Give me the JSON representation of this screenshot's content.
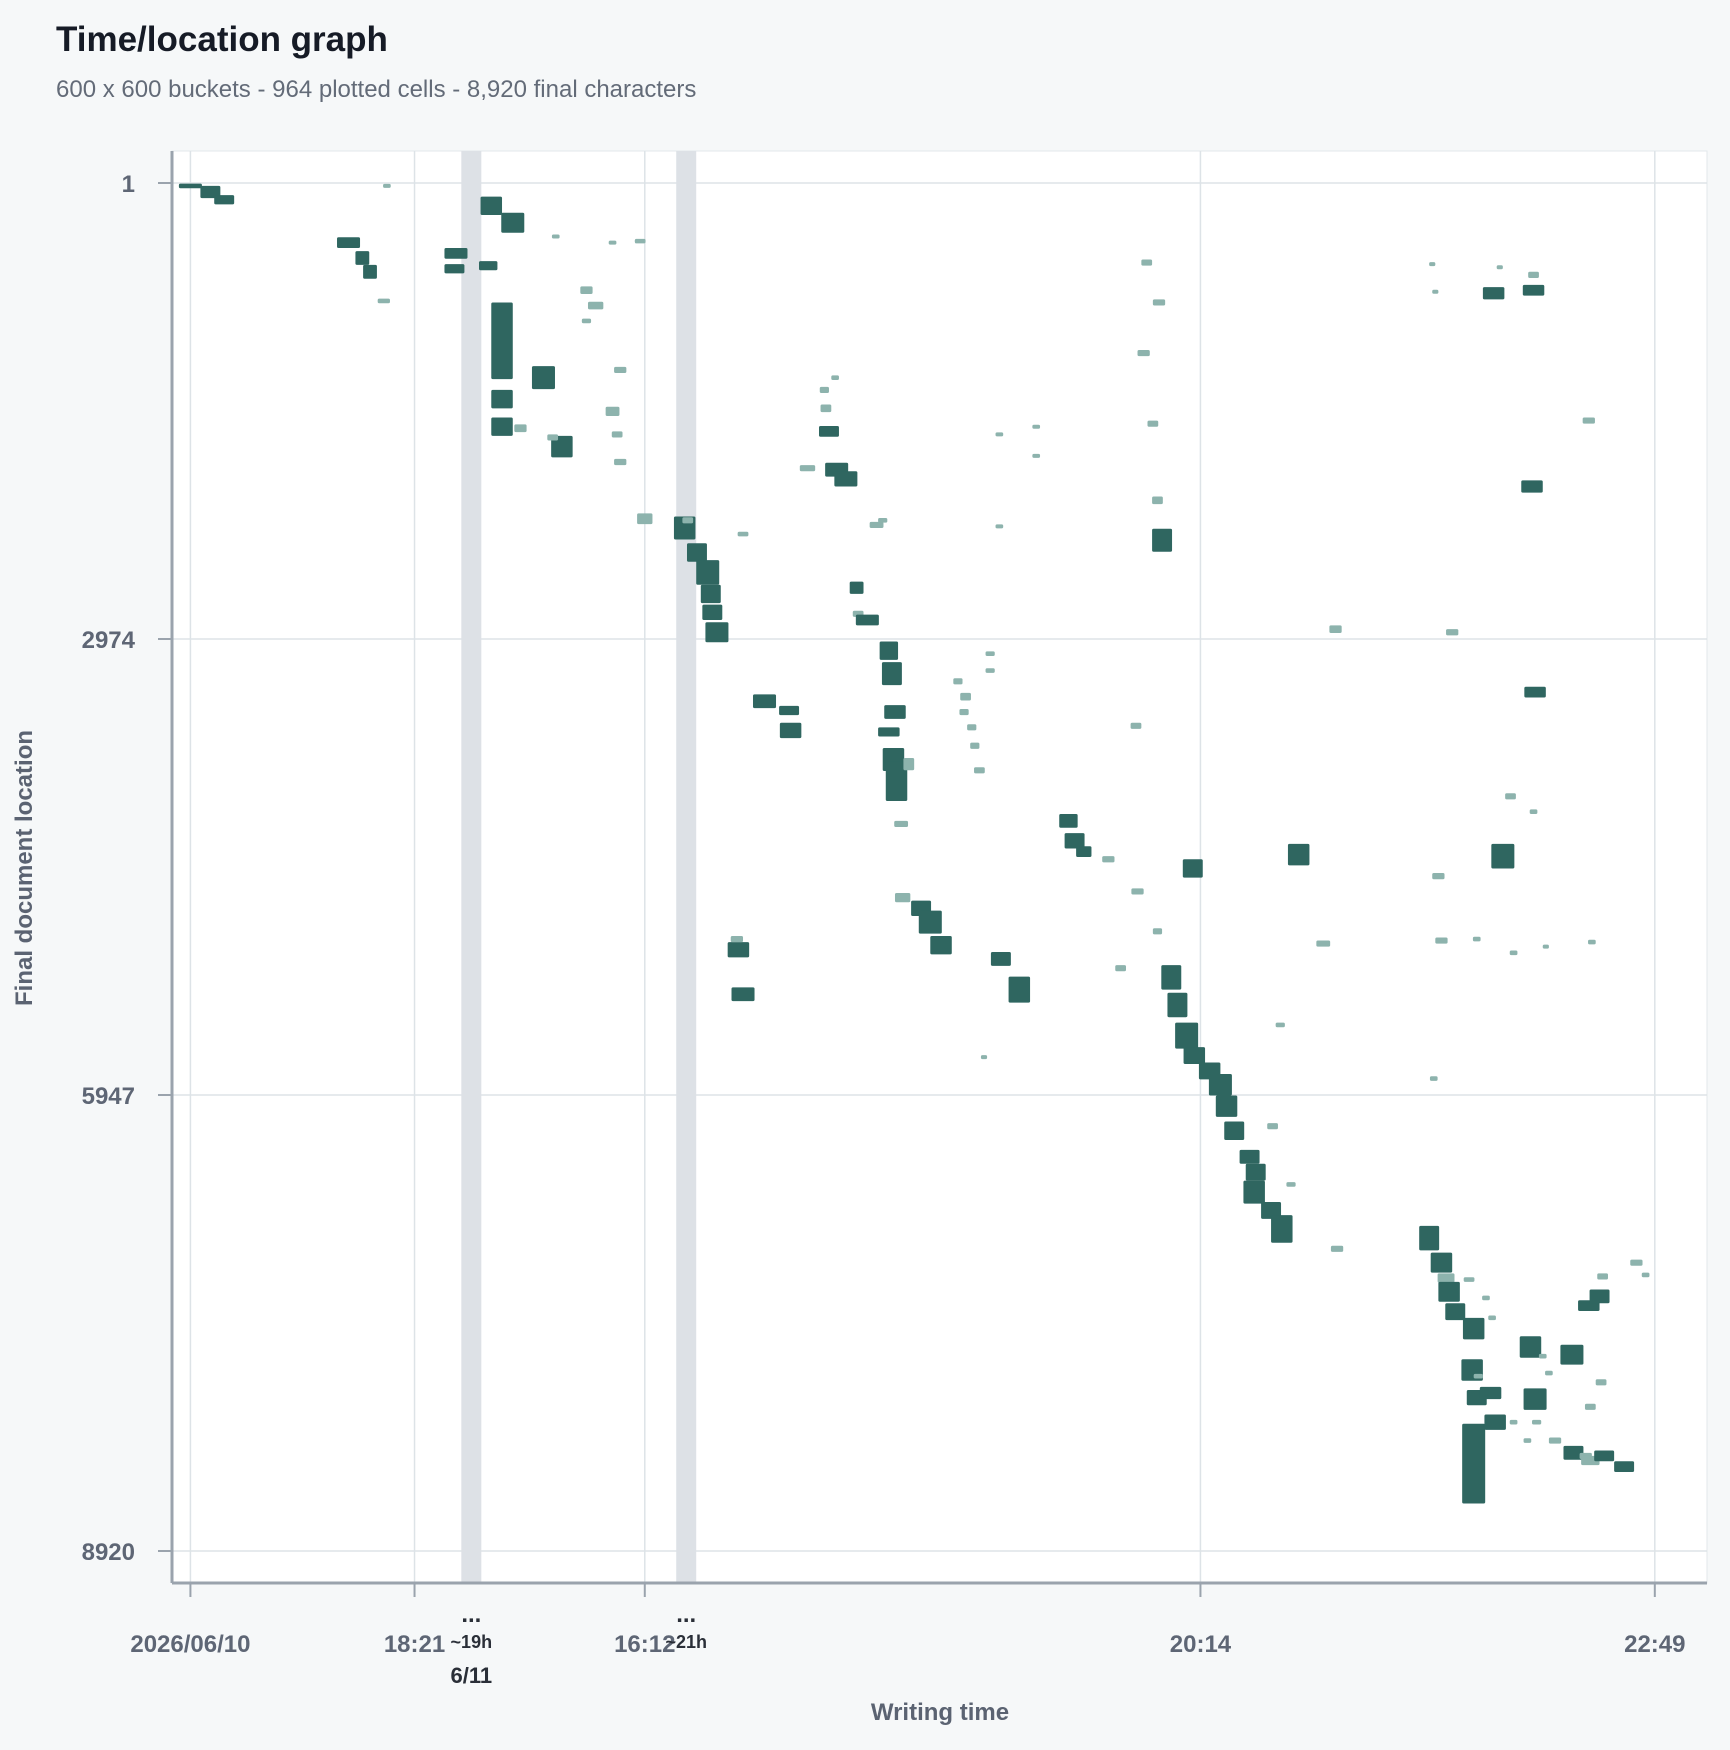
{
  "header": {
    "title": "Time/location graph",
    "subtitle": "600 x 600 buckets - 964 plotted cells - 8,920 final characters"
  },
  "colors": {
    "cell": "#2f6660",
    "cell_light": "#8db3ad",
    "grid": "#dde3e7",
    "gap_band": "#dde1e6",
    "axis": "#9aa3ad",
    "plot_bg": "#ffffff"
  },
  "chart_data": {
    "type": "heatmap",
    "xlabel": "Writing time",
    "ylabel": "Final document location",
    "ylim": [
      1,
      8920
    ],
    "y_ticks": [
      1,
      2974,
      5947,
      8920
    ],
    "x_segments": [
      {
        "start": 0,
        "end": 19
      },
      {
        "start": 20,
        "end": 33
      },
      {
        "start": 34,
        "end": 100
      }
    ],
    "x_ticks": [
      {
        "label": "2026/06/10",
        "pos": 1.2
      },
      {
        "label": "18:21",
        "pos": 15.8
      },
      {
        "label": "16:12",
        "pos": 30.8
      },
      {
        "label": "20:14",
        "pos": 67.0
      },
      {
        "label": "22:49",
        "pos": 96.6
      }
    ],
    "gaps": [
      {
        "label": "~19h",
        "pos": 19.5,
        "marker": "...",
        "date": "6/11"
      },
      {
        "label": "~21h",
        "pos": 33.5,
        "marker": "..."
      }
    ],
    "cells": [
      [
        1.2,
        20,
        1.5,
        30,
        0
      ],
      [
        2.5,
        60,
        1.3,
        80,
        0
      ],
      [
        3.4,
        110,
        1.3,
        60,
        0
      ],
      [
        11.5,
        390,
        1.5,
        70,
        0
      ],
      [
        12.4,
        490,
        0.9,
        90,
        0
      ],
      [
        12.9,
        580,
        0.9,
        90,
        0
      ],
      [
        13.8,
        770,
        0.8,
        30,
        1
      ],
      [
        18.5,
        460,
        1.5,
        70,
        0
      ],
      [
        18.4,
        560,
        1.3,
        60,
        0
      ],
      [
        20.8,
        150,
        1.4,
        120,
        0
      ],
      [
        22.2,
        260,
        1.5,
        130,
        0
      ],
      [
        20.6,
        540,
        1.2,
        60,
        0
      ],
      [
        21.5,
        1030,
        1.4,
        500,
        0
      ],
      [
        21.5,
        1410,
        1.4,
        120,
        0
      ],
      [
        21.5,
        1590,
        1.4,
        120,
        0
      ],
      [
        22.7,
        1600,
        0.8,
        50,
        1
      ],
      [
        24.2,
        1270,
        1.5,
        150,
        0
      ],
      [
        25.4,
        1720,
        1.4,
        140,
        0
      ],
      [
        24.8,
        1660,
        0.7,
        40,
        1
      ],
      [
        27.0,
        700,
        0.8,
        50,
        1
      ],
      [
        27.6,
        800,
        1.0,
        50,
        1
      ],
      [
        27.0,
        900,
        0.6,
        30,
        1
      ],
      [
        29.2,
        1220,
        0.8,
        40,
        1
      ],
      [
        28.7,
        1490,
        0.9,
        60,
        1
      ],
      [
        29.0,
        1640,
        0.7,
        40,
        1
      ],
      [
        29.2,
        1820,
        0.8,
        40,
        1
      ],
      [
        30.8,
        2190,
        1.0,
        70,
        1
      ],
      [
        30.5,
        380,
        0.7,
        30,
        1
      ],
      [
        28.7,
        390,
        0.5,
        20,
        1
      ],
      [
        25.0,
        350,
        0.5,
        20,
        1
      ],
      [
        14.0,
        20,
        0.5,
        20,
        1
      ],
      [
        33.4,
        2250,
        1.4,
        150,
        0
      ],
      [
        34.2,
        2410,
        1.3,
        120,
        0
      ],
      [
        34.9,
        2540,
        1.5,
        160,
        0
      ],
      [
        35.1,
        2680,
        1.3,
        120,
        0
      ],
      [
        35.2,
        2800,
        1.3,
        100,
        0
      ],
      [
        35.5,
        2930,
        1.5,
        130,
        0
      ],
      [
        33.6,
        2200,
        0.7,
        40,
        1
      ],
      [
        37.2,
        2290,
        0.7,
        30,
        1
      ],
      [
        38.6,
        3380,
        1.5,
        90,
        0
      ],
      [
        40.2,
        3440,
        1.3,
        60,
        0
      ],
      [
        40.3,
        3570,
        1.4,
        100,
        0
      ],
      [
        36.9,
        5000,
        1.4,
        100,
        0
      ],
      [
        37.2,
        5290,
        1.5,
        90,
        0
      ],
      [
        36.8,
        4930,
        0.8,
        40,
        1
      ],
      [
        41.4,
        1860,
        1.0,
        40,
        1
      ],
      [
        42.5,
        1350,
        0.6,
        40,
        1
      ],
      [
        42.6,
        1470,
        0.7,
        50,
        1
      ],
      [
        42.8,
        1620,
        1.3,
        70,
        0
      ],
      [
        43.3,
        1870,
        1.5,
        90,
        0
      ],
      [
        43.9,
        1930,
        1.5,
        100,
        0
      ],
      [
        43.2,
        1270,
        0.5,
        30,
        1
      ],
      [
        44.6,
        2640,
        0.9,
        80,
        0
      ],
      [
        44.7,
        2810,
        0.7,
        40,
        1
      ],
      [
        45.3,
        2850,
        1.5,
        70,
        0
      ],
      [
        45.9,
        2230,
        0.9,
        40,
        1
      ],
      [
        46.3,
        2200,
        0.6,
        30,
        1
      ],
      [
        46.7,
        3050,
        1.2,
        120,
        0
      ],
      [
        46.9,
        3200,
        1.3,
        150,
        0
      ],
      [
        47.1,
        3450,
        1.4,
        90,
        0
      ],
      [
        46.7,
        3580,
        1.4,
        60,
        0
      ],
      [
        47.0,
        3760,
        1.4,
        150,
        0
      ],
      [
        47.2,
        3900,
        1.4,
        260,
        0
      ],
      [
        48.0,
        3790,
        0.7,
        80,
        1
      ],
      [
        47.5,
        4180,
        0.9,
        40,
        1
      ],
      [
        47.6,
        4660,
        1.0,
        60,
        1
      ],
      [
        48.8,
        4730,
        1.3,
        100,
        0
      ],
      [
        49.4,
        4820,
        1.5,
        150,
        0
      ],
      [
        50.1,
        4970,
        1.4,
        120,
        0
      ],
      [
        51.2,
        3250,
        0.6,
        40,
        1
      ],
      [
        51.7,
        3350,
        0.7,
        50,
        1
      ],
      [
        51.6,
        3450,
        0.6,
        40,
        1
      ],
      [
        52.1,
        3550,
        0.6,
        40,
        1
      ],
      [
        52.3,
        3670,
        0.6,
        40,
        1
      ],
      [
        52.6,
        3830,
        0.7,
        40,
        1
      ],
      [
        53.3,
        3070,
        0.6,
        30,
        1
      ],
      [
        53.3,
        3180,
        0.6,
        30,
        1
      ],
      [
        54.0,
        5060,
        1.3,
        90,
        0
      ],
      [
        55.2,
        5260,
        1.4,
        170,
        0
      ],
      [
        52.9,
        5700,
        0.4,
        20,
        1
      ],
      [
        56.3,
        1590,
        0.5,
        20,
        1
      ],
      [
        56.3,
        1780,
        0.5,
        20,
        1
      ],
      [
        53.9,
        1640,
        0.5,
        20,
        1
      ],
      [
        53.9,
        2240,
        0.5,
        20,
        1
      ],
      [
        58.4,
        4160,
        1.2,
        90,
        0
      ],
      [
        58.8,
        4290,
        1.3,
        100,
        0
      ],
      [
        59.4,
        4360,
        1.0,
        70,
        0
      ],
      [
        61.0,
        4410,
        0.8,
        40,
        1
      ],
      [
        62.9,
        4620,
        0.8,
        40,
        1
      ],
      [
        66.5,
        4470,
        1.3,
        120,
        0
      ],
      [
        64.2,
        4880,
        0.6,
        40,
        1
      ],
      [
        61.8,
        5120,
        0.7,
        40,
        1
      ],
      [
        62.8,
        3540,
        0.7,
        40,
        1
      ],
      [
        63.3,
        1110,
        0.8,
        40,
        1
      ],
      [
        63.9,
        1570,
        0.7,
        40,
        1
      ],
      [
        64.2,
        2070,
        0.7,
        50,
        1
      ],
      [
        63.5,
        520,
        0.7,
        40,
        1
      ],
      [
        64.3,
        780,
        0.8,
        40,
        1
      ],
      [
        64.5,
        2330,
        1.3,
        150,
        0
      ],
      [
        65.1,
        5180,
        1.3,
        160,
        0
      ],
      [
        65.5,
        5360,
        1.3,
        160,
        0
      ],
      [
        66.1,
        5560,
        1.5,
        170,
        0
      ],
      [
        66.6,
        5690,
        1.4,
        110,
        0
      ],
      [
        67.6,
        5790,
        1.4,
        110,
        0
      ],
      [
        68.3,
        5880,
        1.5,
        140,
        0
      ],
      [
        68.7,
        6020,
        1.4,
        140,
        0
      ],
      [
        69.2,
        6180,
        1.3,
        120,
        0
      ],
      [
        70.2,
        6350,
        1.3,
        90,
        0
      ],
      [
        70.6,
        6450,
        1.3,
        110,
        0
      ],
      [
        70.5,
        6580,
        1.4,
        150,
        0
      ],
      [
        71.6,
        6700,
        1.3,
        110,
        0
      ],
      [
        72.3,
        6820,
        1.4,
        180,
        0
      ],
      [
        71.7,
        6150,
        0.7,
        40,
        1
      ],
      [
        72.9,
        6530,
        0.6,
        30,
        1
      ],
      [
        72.2,
        5490,
        0.6,
        30,
        1
      ],
      [
        73.4,
        4380,
        1.4,
        140,
        0
      ],
      [
        75.0,
        4960,
        0.9,
        40,
        1
      ],
      [
        75.8,
        2910,
        0.8,
        50,
        1
      ],
      [
        75.9,
        6950,
        0.8,
        40,
        1
      ],
      [
        83.4,
        2930,
        0.8,
        40,
        1
      ],
      [
        82.5,
        4520,
        0.8,
        40,
        1
      ],
      [
        82.7,
        4940,
        0.8,
        40,
        1
      ],
      [
        82.2,
        5840,
        0.5,
        30,
        1
      ],
      [
        82.3,
        710,
        0.4,
        20,
        1
      ],
      [
        82.1,
        530,
        0.4,
        20,
        1
      ],
      [
        86.1,
        720,
        1.4,
        80,
        0
      ],
      [
        88.7,
        700,
        1.4,
        70,
        0
      ],
      [
        88.7,
        600,
        0.7,
        40,
        1
      ],
      [
        86.5,
        550,
        0.4,
        20,
        1
      ],
      [
        92.3,
        1550,
        0.8,
        40,
        1
      ],
      [
        88.6,
        1980,
        1.4,
        80,
        0
      ],
      [
        88.8,
        3320,
        1.4,
        70,
        0
      ],
      [
        87.2,
        4000,
        0.7,
        40,
        1
      ],
      [
        88.7,
        4100,
        0.5,
        30,
        1
      ],
      [
        86.7,
        4390,
        1.5,
        160,
        0
      ],
      [
        85.0,
        4930,
        0.5,
        30,
        1
      ],
      [
        87.4,
        5020,
        0.5,
        30,
        1
      ],
      [
        89.5,
        4980,
        0.4,
        20,
        1
      ],
      [
        92.5,
        4950,
        0.5,
        30,
        1
      ],
      [
        81.9,
        6880,
        1.3,
        160,
        0
      ],
      [
        82.7,
        7040,
        1.4,
        130,
        0
      ],
      [
        83.0,
        7140,
        1.1,
        60,
        1
      ],
      [
        83.2,
        7230,
        1.4,
        130,
        0
      ],
      [
        83.6,
        7360,
        1.3,
        110,
        0
      ],
      [
        84.8,
        7470,
        1.4,
        140,
        0
      ],
      [
        84.5,
        7150,
        0.7,
        30,
        1
      ],
      [
        85.6,
        7270,
        0.5,
        30,
        1
      ],
      [
        86.0,
        7400,
        0.5,
        30,
        1
      ],
      [
        84.7,
        7740,
        1.4,
        140,
        0
      ],
      [
        85.1,
        7780,
        0.6,
        30,
        1
      ],
      [
        85.0,
        7920,
        1.3,
        100,
        0
      ],
      [
        85.9,
        7890,
        1.4,
        80,
        0
      ],
      [
        86.2,
        8080,
        1.4,
        100,
        0
      ],
      [
        84.6,
        8110,
        0.4,
        20,
        1
      ],
      [
        87.4,
        8080,
        0.5,
        30,
        1
      ],
      [
        88.5,
        7590,
        1.4,
        140,
        0
      ],
      [
        88.8,
        7930,
        1.5,
        140,
        0
      ],
      [
        88.9,
        8080,
        0.6,
        30,
        1
      ],
      [
        88.3,
        8200,
        0.5,
        30,
        1
      ],
      [
        89.3,
        7650,
        0.5,
        30,
        1
      ],
      [
        89.7,
        7760,
        0.5,
        30,
        1
      ],
      [
        91.2,
        7640,
        1.5,
        130,
        0
      ],
      [
        90.1,
        8200,
        0.8,
        40,
        1
      ],
      [
        91.3,
        8280,
        1.3,
        90,
        0
      ],
      [
        92.1,
        8300,
        0.8,
        40,
        1
      ],
      [
        92.4,
        8330,
        1.2,
        60,
        1
      ],
      [
        93.3,
        8300,
        1.3,
        70,
        0
      ],
      [
        94.6,
        8370,
        1.3,
        70,
        0
      ],
      [
        92.4,
        7980,
        0.7,
        40,
        1
      ],
      [
        93.1,
        7820,
        0.7,
        40,
        1
      ],
      [
        92.3,
        7320,
        1.4,
        70,
        0
      ],
      [
        93.0,
        7260,
        1.3,
        90,
        0
      ],
      [
        93.2,
        7130,
        0.7,
        40,
        1
      ],
      [
        95.4,
        7040,
        0.8,
        40,
        1
      ],
      [
        96.0,
        7120,
        0.5,
        30,
        1
      ],
      [
        84.8,
        8350,
        1.5,
        520,
        0
      ]
    ]
  }
}
